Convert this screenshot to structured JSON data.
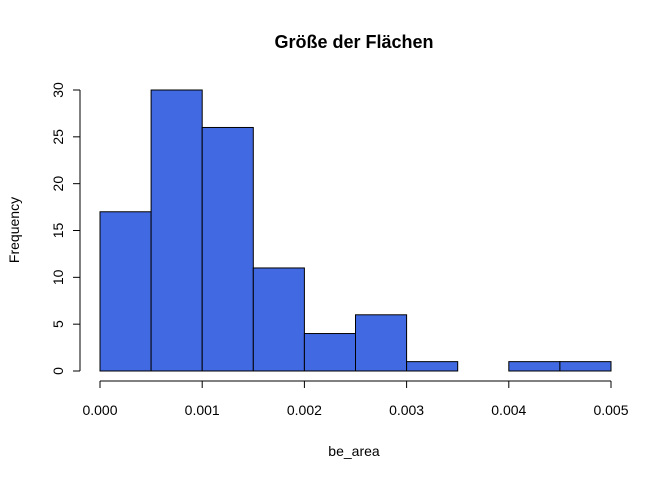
{
  "chart_data": {
    "type": "bar",
    "title": "Größe der Flächen",
    "xlabel": "be_area",
    "ylabel": "Frequency",
    "bin_edges": [
      0,
      0.0005,
      0.001,
      0.0015,
      0.002,
      0.0025,
      0.003,
      0.0035,
      0.004,
      0.0045,
      0.005
    ],
    "values": [
      17,
      30,
      26,
      11,
      4,
      6,
      1,
      0,
      1,
      1
    ],
    "xlim": [
      0,
      0.005
    ],
    "ylim": [
      0,
      30
    ],
    "x_ticks": [
      0,
      0.001,
      0.002,
      0.003,
      0.004,
      0.005
    ],
    "x_tick_labels": [
      "0.000",
      "0.001",
      "0.002",
      "0.003",
      "0.004",
      "0.005"
    ],
    "y_ticks": [
      0,
      5,
      10,
      15,
      20,
      25,
      30
    ],
    "y_tick_labels": [
      "0",
      "5",
      "10",
      "15",
      "20",
      "25",
      "30"
    ],
    "bar_color": "#4169E1",
    "grid": false,
    "legend": "none"
  }
}
